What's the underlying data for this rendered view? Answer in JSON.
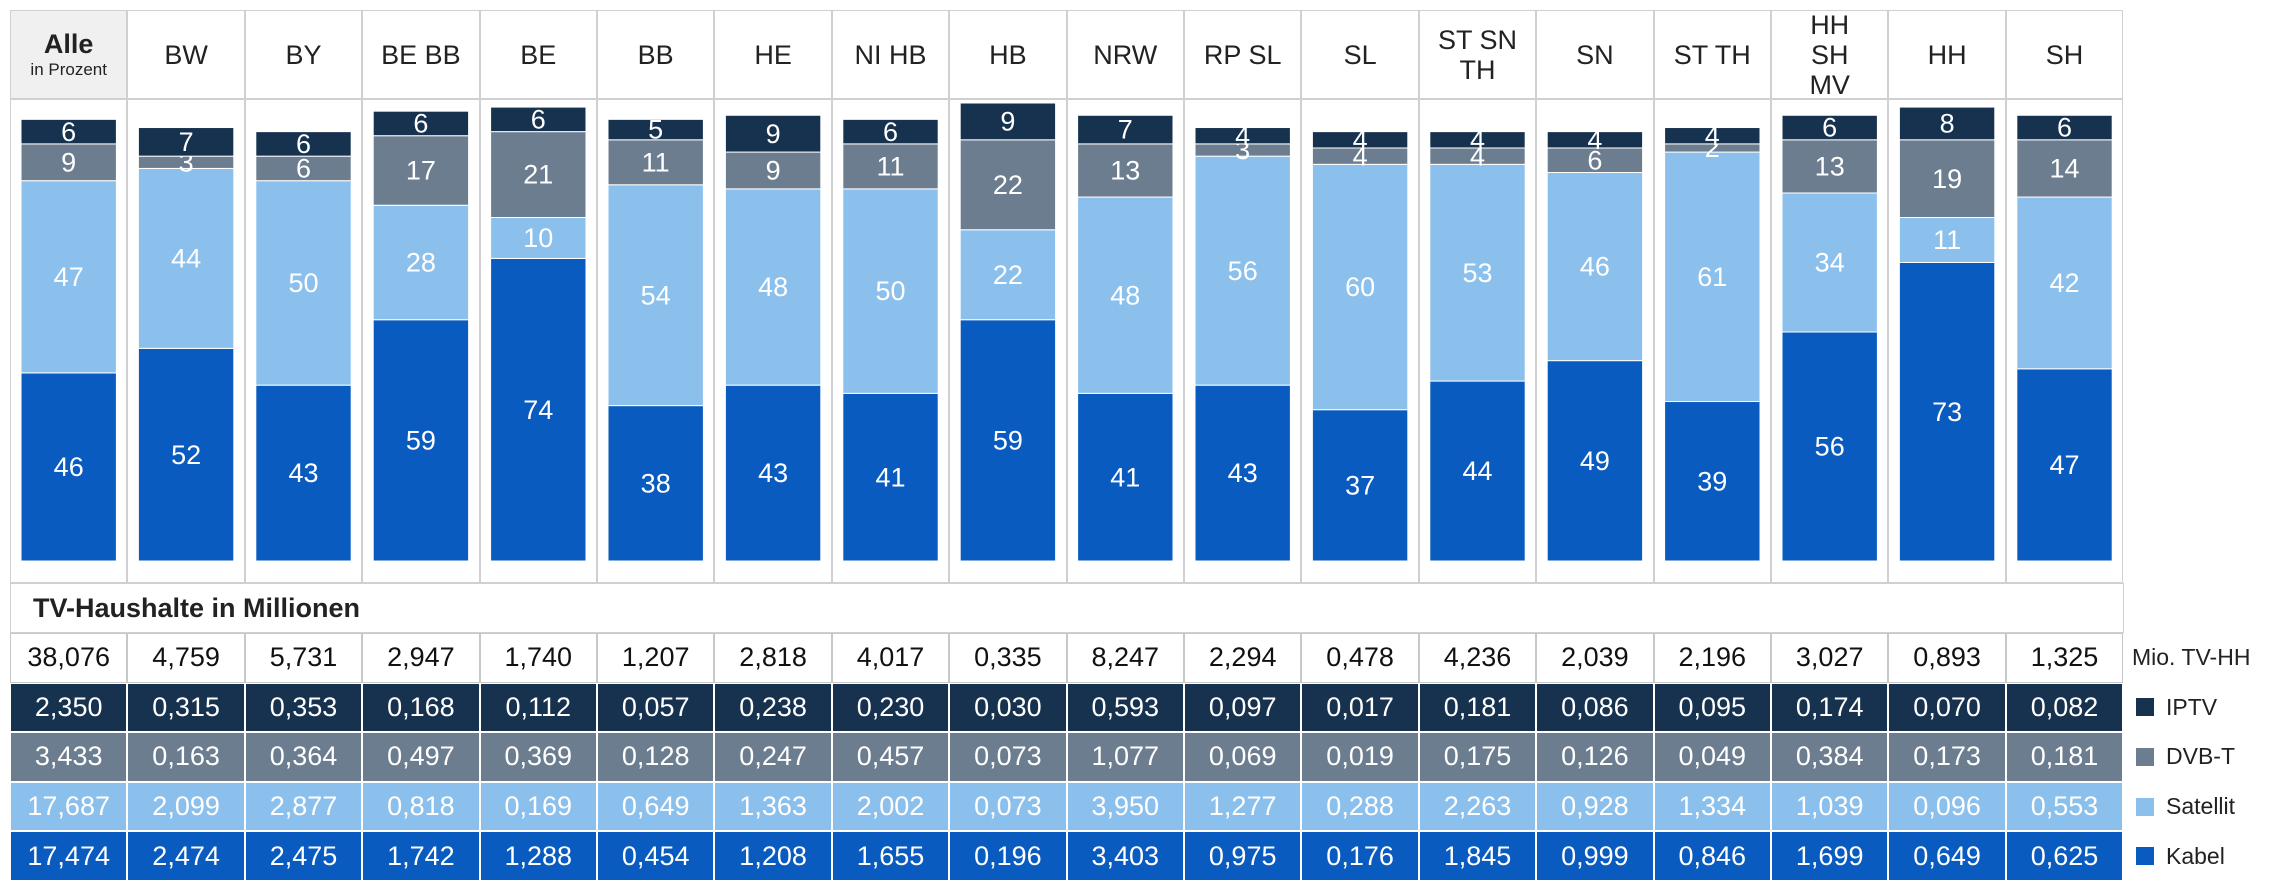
{
  "chart_data": {
    "type": "bar",
    "stacked": true,
    "ylabel": "in Prozent",
    "categories": [
      "Alle",
      "BW",
      "BY",
      "BE BB",
      "BE",
      "BB",
      "HE",
      "NI HB",
      "HB",
      "NRW",
      "RP SL",
      "SL",
      "ST SN TH",
      "SN",
      "ST TH",
      "HH SH MV",
      "HH",
      "SH"
    ],
    "series": [
      {
        "name": "Kabel",
        "color": "#0a5bbf",
        "values": [
          46,
          52,
          43,
          59,
          74,
          38,
          43,
          41,
          59,
          41,
          43,
          37,
          44,
          49,
          39,
          56,
          73,
          47
        ]
      },
      {
        "name": "Satellit",
        "color": "#8cc0ec",
        "values": [
          47,
          44,
          50,
          28,
          10,
          54,
          48,
          50,
          22,
          48,
          56,
          60,
          53,
          46,
          61,
          34,
          11,
          42
        ]
      },
      {
        "name": "DVB-T",
        "color": "#6c7d90",
        "values": [
          9,
          3,
          6,
          17,
          21,
          11,
          9,
          11,
          22,
          13,
          3,
          4,
          4,
          6,
          2,
          13,
          19,
          14
        ]
      },
      {
        "name": "IPTV",
        "color": "#17324f",
        "values": [
          6,
          7,
          6,
          6,
          6,
          5,
          9,
          6,
          9,
          7,
          4,
          4,
          4,
          4,
          4,
          6,
          8,
          6
        ]
      }
    ],
    "ylim": [
      0,
      112
    ]
  },
  "table": {
    "title": "TV-Haushalte in Millionen",
    "total_label": "Mio. TV-HH",
    "totals": [
      "38,076",
      "4,759",
      "5,731",
      "2,947",
      "1,740",
      "1,207",
      "2,818",
      "4,017",
      "0,335",
      "8,247",
      "2,294",
      "0,478",
      "4,236",
      "2,039",
      "2,196",
      "3,027",
      "0,893",
      "1,325"
    ],
    "rows": [
      [
        "2,350",
        "0,315",
        "0,353",
        "0,168",
        "0,112",
        "0,057",
        "0,238",
        "0,230",
        "0,030",
        "0,593",
        "0,097",
        "0,017",
        "0,181",
        "0,086",
        "0,095",
        "0,174",
        "0,070",
        "0,082"
      ],
      [
        "3,433",
        "0,163",
        "0,364",
        "0,497",
        "0,369",
        "0,128",
        "0,247",
        "0,457",
        "0,073",
        "1,077",
        "0,069",
        "0,019",
        "0,175",
        "0,126",
        "0,049",
        "0,384",
        "0,173",
        "0,181"
      ],
      [
        "17,687",
        "2,099",
        "2,877",
        "0,818",
        "0,169",
        "0,649",
        "1,363",
        "2,002",
        "0,073",
        "3,950",
        "1,277",
        "0,288",
        "2,263",
        "0,928",
        "1,334",
        "1,039",
        "0,096",
        "0,553"
      ],
      [
        "17,474",
        "2,474",
        "2,475",
        "1,742",
        "1,288",
        "0,454",
        "1,208",
        "1,655",
        "0,196",
        "3,403",
        "0,975",
        "0,176",
        "1,845",
        "0,999",
        "0,846",
        "1,699",
        "0,649",
        "0,625"
      ]
    ]
  }
}
